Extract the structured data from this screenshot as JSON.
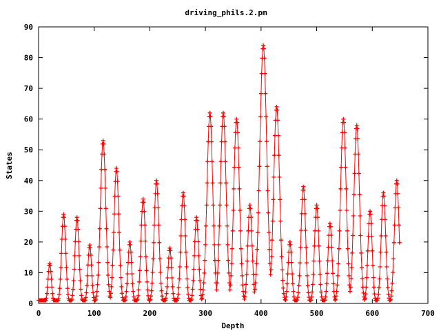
{
  "chart_data": {
    "type": "line",
    "title": "driving_phils.2.pm",
    "xlabel": "Depth",
    "ylabel": "States",
    "xlim": [
      0,
      700
    ],
    "ylim": [
      0,
      90
    ],
    "xticks": [
      0,
      100,
      200,
      300,
      400,
      500,
      600,
      700
    ],
    "yticks": [
      0,
      10,
      20,
      30,
      40,
      50,
      60,
      70,
      80,
      90
    ],
    "grid": false,
    "legend": "none",
    "series_color": "#ff0000",
    "peaks": [
      {
        "x": 20,
        "y": 13
      },
      {
        "x": 45,
        "y": 29
      },
      {
        "x": 69,
        "y": 28
      },
      {
        "x": 92,
        "y": 19
      },
      {
        "x": 116,
        "y": 53
      },
      {
        "x": 140,
        "y": 44
      },
      {
        "x": 164,
        "y": 20
      },
      {
        "x": 188,
        "y": 34
      },
      {
        "x": 212,
        "y": 40
      },
      {
        "x": 236,
        "y": 18
      },
      {
        "x": 260,
        "y": 36
      },
      {
        "x": 284,
        "y": 28
      },
      {
        "x": 308,
        "y": 62
      },
      {
        "x": 332,
        "y": 62
      },
      {
        "x": 356,
        "y": 60
      },
      {
        "x": 380,
        "y": 32
      },
      {
        "x": 404,
        "y": 84
      },
      {
        "x": 428,
        "y": 64
      },
      {
        "x": 452,
        "y": 20
      },
      {
        "x": 476,
        "y": 38
      },
      {
        "x": 500,
        "y": 32
      },
      {
        "x": 524,
        "y": 26
      },
      {
        "x": 548,
        "y": 60
      },
      {
        "x": 572,
        "y": 58
      },
      {
        "x": 596,
        "y": 30
      },
      {
        "x": 620,
        "y": 36
      },
      {
        "x": 644,
        "y": 40
      }
    ],
    "valley_value": 1,
    "depth_start": 0,
    "depth_end": 649
  }
}
